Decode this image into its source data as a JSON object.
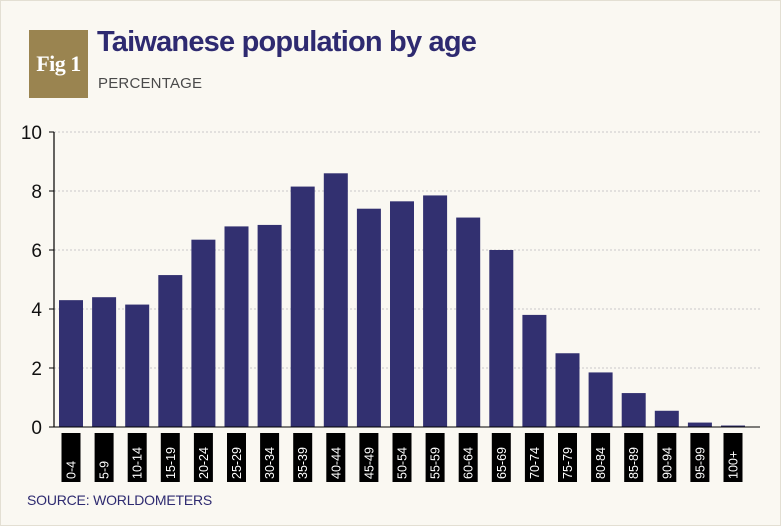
{
  "badge": {
    "label": "Fig 1"
  },
  "header": {
    "title": "Taiwanese population by age",
    "subtitle": "PERCENTAGE"
  },
  "footer": {
    "source": "SOURCE: WORLDOMETERS"
  },
  "colors": {
    "bar": "#323070",
    "badge": "#9a8450",
    "title": "#2e2a70",
    "tick_label_bg": "#000000",
    "tick_label_text": "#ffffff",
    "grid": "#c9c9c9"
  },
  "chart_data": {
    "type": "bar",
    "title": "Taiwanese population by age",
    "subtitle": "PERCENTAGE",
    "categories": [
      "0-4",
      "5-9",
      "10-14",
      "15-19",
      "20-24",
      "25-29",
      "30-34",
      "35-39",
      "40-44",
      "45-49",
      "50-54",
      "55-59",
      "60-64",
      "65-69",
      "70-74",
      "75-79",
      "80-84",
      "85-89",
      "90-94",
      "95-99",
      "100+"
    ],
    "values": [
      4.3,
      4.4,
      4.15,
      5.15,
      6.35,
      6.8,
      6.85,
      8.15,
      8.6,
      7.4,
      7.65,
      7.85,
      7.1,
      6.0,
      3.8,
      2.5,
      1.85,
      1.15,
      0.55,
      0.15,
      0.05
    ],
    "ylim": [
      0,
      10
    ],
    "yticks": [
      0,
      2,
      4,
      6,
      8,
      10
    ],
    "xlabel": "",
    "ylabel": "",
    "grid": true,
    "legend": "none"
  }
}
